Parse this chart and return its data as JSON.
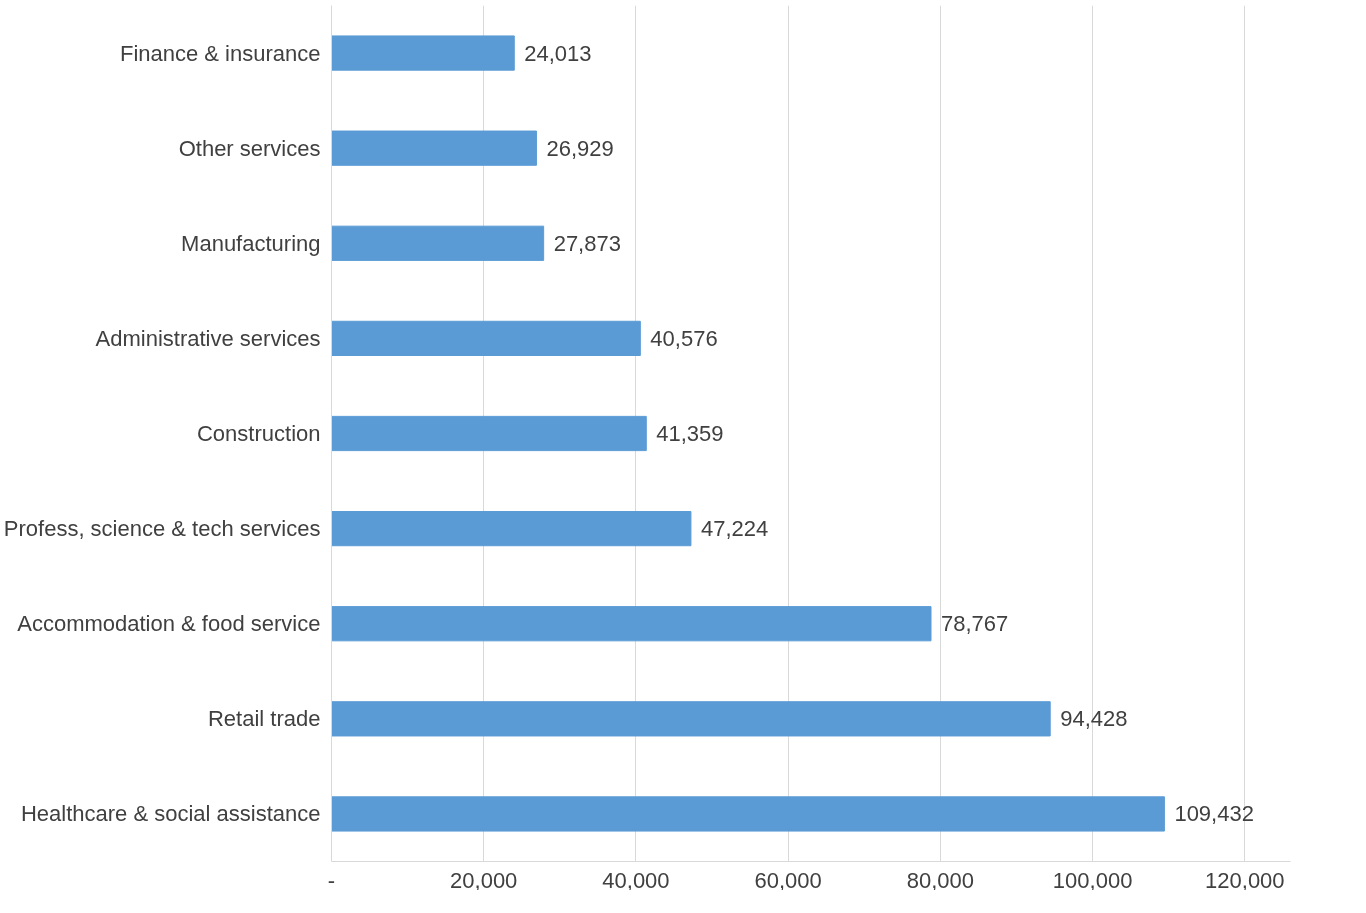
{
  "chart_data": {
    "type": "bar",
    "orientation": "horizontal",
    "categories": [
      "Finance & insurance",
      "Other services",
      "Manufacturing",
      "Administrative services",
      "Construction",
      "Profess, science & tech services",
      "Accommodation & food service",
      "Retail trade",
      "Healthcare & social assistance"
    ],
    "values": [
      24013,
      26929,
      27873,
      40576,
      41359,
      47224,
      78767,
      94428,
      109432
    ],
    "color": "#5b9bd5",
    "value_labels": [
      "24,013",
      "26,929",
      "27,873",
      "40,576",
      "41,359",
      "47,224",
      "78,767",
      "94,428",
      "109,432"
    ],
    "xlim": [
      0,
      126000
    ],
    "xticks": [
      {
        "value": 0,
        "label": "-"
      },
      {
        "value": 20000,
        "label": "20,000"
      },
      {
        "value": 40000,
        "label": "40,000"
      },
      {
        "value": 60000,
        "label": "60,000"
      },
      {
        "value": 80000,
        "label": "80,000"
      },
      {
        "value": 100000,
        "label": "100,000"
      },
      {
        "value": 120000,
        "label": "120,000"
      }
    ],
    "grid": "x"
  }
}
